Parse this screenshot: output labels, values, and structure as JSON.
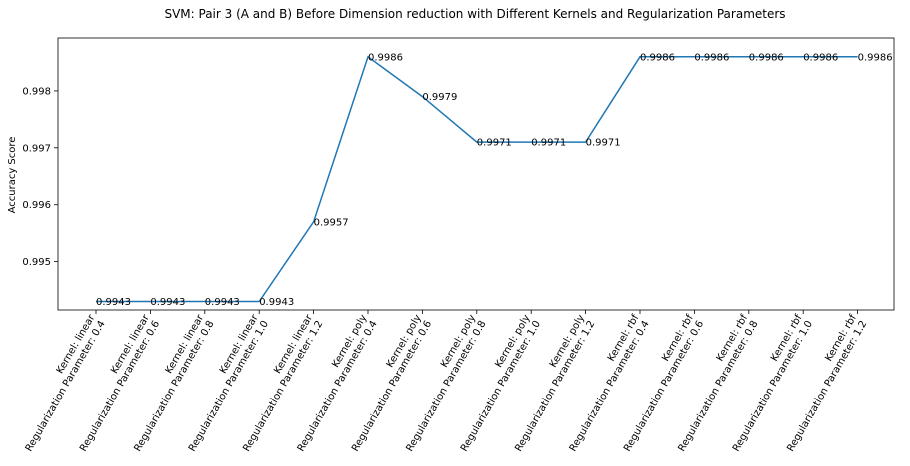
{
  "chart_data": {
    "type": "line",
    "title": "SVM: Pair 3 (A and B) Before Dimension reduction with Different Kernels and Regularization Parameters",
    "xlabel": "",
    "ylabel": "Accuracy Score",
    "categories": [
      [
        "Kernel: linear",
        "Regularization Parameter: 0.4"
      ],
      [
        "Kernel: linear",
        "Regularization Parameter: 0.6"
      ],
      [
        "Kernel: linear",
        "Regularization Parameter: 0.8"
      ],
      [
        "Kernel: linear",
        "Regularization Parameter: 1.0"
      ],
      [
        "Kernel: linear",
        "Regularization Parameter: 1.2"
      ],
      [
        "Kernel: poly",
        "Regularization Parameter: 0.4"
      ],
      [
        "Kernel: poly",
        "Regularization Parameter: 0.6"
      ],
      [
        "Kernel: poly",
        "Regularization Parameter: 0.8"
      ],
      [
        "Kernel: poly",
        "Regularization Parameter: 1.0"
      ],
      [
        "Kernel: poly",
        "Regularization Parameter: 1.2"
      ],
      [
        "Kernel: rbf",
        "Regularization Parameter: 0.4"
      ],
      [
        "Kernel: rbf",
        "Regularization Parameter: 0.6"
      ],
      [
        "Kernel: rbf",
        "Regularization Parameter: 0.8"
      ],
      [
        "Kernel: rbf",
        "Regularization Parameter: 1.0"
      ],
      [
        "Kernel: rbf",
        "Regularization Parameter: 1.2"
      ]
    ],
    "values": [
      0.9943,
      0.9943,
      0.9943,
      0.9943,
      0.9957,
      0.9986,
      0.9979,
      0.9971,
      0.9971,
      0.9971,
      0.9986,
      0.9986,
      0.9986,
      0.9986,
      0.9986
    ],
    "data_labels": [
      "0.9943",
      "0.9943",
      "0.9943",
      "0.9943",
      "0.9957",
      "0.9986",
      "0.9979",
      "0.9971",
      "0.9971",
      "0.9971",
      "0.9986",
      "0.9986",
      "0.9986",
      "0.9986",
      "0.9986"
    ],
    "yticks": [
      0.995,
      0.996,
      0.997,
      0.998
    ],
    "ytick_labels": [
      "0.995",
      "0.996",
      "0.997",
      "0.998"
    ],
    "ylim": [
      0.99415,
      0.99893
    ],
    "grid": false,
    "line_color": "#1f77b4"
  }
}
